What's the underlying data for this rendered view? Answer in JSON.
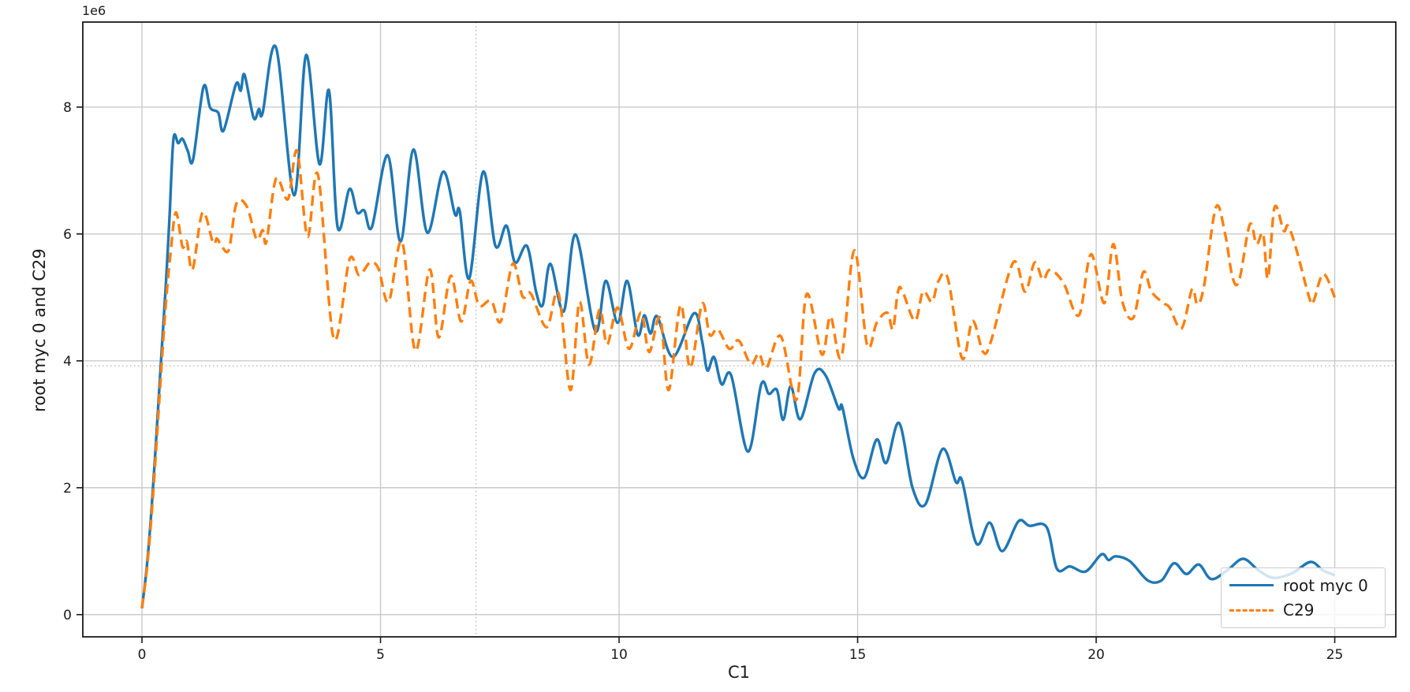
{
  "chart_data": {
    "type": "line",
    "title": "",
    "xlabel": "C1",
    "ylabel": "root myc 0 and C29",
    "y_offset_text": "1e6",
    "y_unit_multiplier": 1000000,
    "xlim": [
      -1.24,
      26.28
    ],
    "ylim": [
      -0.35,
      9.34
    ],
    "xticks": {
      "values": [
        0,
        5,
        10,
        15,
        20,
        25
      ],
      "labels": [
        "0",
        "5",
        "10",
        "15",
        "20",
        "25"
      ]
    },
    "yticks": {
      "values": [
        0,
        2,
        4,
        6,
        8
      ],
      "labels": [
        "0",
        "2",
        "4",
        "6",
        "8"
      ]
    },
    "grid": {
      "enabled": true,
      "color": "#c6c6c6",
      "extra_style": "dotted",
      "extra_color": "#b0b0b0"
    },
    "reference_lines": [
      {
        "axis": "x",
        "value": 7,
        "style": "dotted"
      },
      {
        "axis": "y",
        "value": 3.92,
        "style": "dotted"
      }
    ],
    "legend": {
      "position": "lower right",
      "entries": [
        "root myc 0",
        "C29"
      ]
    },
    "series": [
      {
        "name": "root myc 0",
        "color": "#1f77b4",
        "line_style": "solid",
        "x": [
          0,
          0.1,
          0.2,
          0.3,
          0.4,
          0.5,
          0.58,
          0.66,
          0.76,
          0.85,
          0.96,
          1.07,
          1.29,
          1.43,
          1.6,
          1.71,
          1.97,
          2.07,
          2.15,
          2.34,
          2.45,
          2.53,
          2.81,
          3.19,
          3.44,
          3.72,
          3.92,
          4.1,
          4.35,
          4.51,
          4.66,
          4.82,
          5.15,
          5.42,
          5.69,
          5.98,
          6.31,
          6.56,
          6.66,
          6.86,
          7.15,
          7.41,
          7.64,
          7.82,
          8.07,
          8.26,
          8.4,
          8.56,
          8.84,
          9.09,
          9.5,
          9.72,
          9.97,
          10.17,
          10.39,
          10.53,
          10.66,
          10.8,
          11.13,
          11.57,
          11.74,
          11.85,
          11.99,
          12.15,
          12.35,
          12.7,
          12.98,
          13.14,
          13.31,
          13.44,
          13.6,
          13.8,
          14.1,
          14.33,
          14.6,
          14.68,
          14.91,
          15.14,
          15.4,
          15.6,
          15.87,
          16.15,
          16.42,
          16.78,
          17.06,
          17.19,
          17.49,
          17.77,
          18.03,
          18.37,
          18.6,
          18.96,
          19.18,
          19.45,
          19.78,
          20.11,
          20.26,
          20.41,
          20.71,
          21.08,
          21.37,
          21.63,
          21.89,
          22.15,
          22.41,
          22.75,
          23.08,
          23.4,
          23.71,
          24.1,
          24.49,
          24.75,
          25
        ],
        "y": [
          0.1,
          0.75,
          1.65,
          2.8,
          4.0,
          5.2,
          6.3,
          7.5,
          7.43,
          7.5,
          7.31,
          7.17,
          8.32,
          7.99,
          7.91,
          7.63,
          8.36,
          8.26,
          8.51,
          7.83,
          7.97,
          7.91,
          8.94,
          6.61,
          8.82,
          7.1,
          8.26,
          6.11,
          6.71,
          6.34,
          6.37,
          6.11,
          7.24,
          5.88,
          7.33,
          6.02,
          6.98,
          6.31,
          6.36,
          5.3,
          6.98,
          5.81,
          6.13,
          5.55,
          5.81,
          5.09,
          4.88,
          5.53,
          4.78,
          5.99,
          4.47,
          5.26,
          4.6,
          5.26,
          4.41,
          4.72,
          4.43,
          4.7,
          4.06,
          4.75,
          4.31,
          3.85,
          4.06,
          3.63,
          3.77,
          2.57,
          3.63,
          3.48,
          3.54,
          3.07,
          3.6,
          3.08,
          3.81,
          3.77,
          3.25,
          3.27,
          2.46,
          2.16,
          2.76,
          2.39,
          3.02,
          2.0,
          1.74,
          2.61,
          2.09,
          2.11,
          1.12,
          1.45,
          1.0,
          1.47,
          1.4,
          1.38,
          0.72,
          0.76,
          0.68,
          0.95,
          0.86,
          0.92,
          0.84,
          0.54,
          0.54,
          0.81,
          0.64,
          0.79,
          0.56,
          0.7,
          0.88,
          0.7,
          0.58,
          0.65,
          0.83,
          0.7,
          0.62
        ]
      },
      {
        "name": "C29",
        "color": "#ff7f0e",
        "line_style": "dashed",
        "x": [
          0,
          0.1,
          0.2,
          0.3,
          0.4,
          0.5,
          0.6,
          0.71,
          0.85,
          0.94,
          1.06,
          1.27,
          1.49,
          1.57,
          1.65,
          1.82,
          1.98,
          2.2,
          2.4,
          2.53,
          2.61,
          2.81,
          3.06,
          3.25,
          3.47,
          3.69,
          4.02,
          4.35,
          4.55,
          4.78,
          4.96,
          5.17,
          5.45,
          5.73,
          6.03,
          6.22,
          6.47,
          6.69,
          6.89,
          7.07,
          7.32,
          7.52,
          7.77,
          7.98,
          8.15,
          8.48,
          8.73,
          8.98,
          9.17,
          9.37,
          9.59,
          9.75,
          9.97,
          10.21,
          10.46,
          10.63,
          10.86,
          11.04,
          11.29,
          11.49,
          11.74,
          11.9,
          12.07,
          12.31,
          12.51,
          12.76,
          12.93,
          13.09,
          13.39,
          13.72,
          13.93,
          14.25,
          14.43,
          14.66,
          14.93,
          15.2,
          15.4,
          15.62,
          15.74,
          15.84,
          15.93,
          16.2,
          16.37,
          16.56,
          16.69,
          16.89,
          17.19,
          17.41,
          17.63,
          17.8,
          18.26,
          18.51,
          18.71,
          18.88,
          19.01,
          19.17,
          19.34,
          19.64,
          19.89,
          20.17,
          20.36,
          20.55,
          20.78,
          20.99,
          21.16,
          21.41,
          21.54,
          21.79,
          22.01,
          22.12,
          22.26,
          22.51,
          22.7,
          22.86,
          23.0,
          23.22,
          23.36,
          23.5,
          23.6,
          23.74,
          23.93,
          24.02,
          24.18,
          24.46,
          24.55,
          24.76,
          25
        ],
        "y": [
          0.1,
          0.7,
          1.55,
          2.65,
          3.8,
          4.9,
          5.7,
          6.34,
          5.8,
          5.88,
          5.44,
          6.34,
          5.86,
          5.93,
          5.84,
          5.75,
          6.48,
          6.43,
          5.92,
          6.06,
          5.88,
          6.87,
          6.55,
          7.31,
          5.96,
          6.93,
          4.35,
          5.6,
          5.35,
          5.55,
          5.45,
          4.93,
          5.88,
          4.16,
          5.44,
          4.37,
          5.34,
          4.62,
          5.26,
          4.87,
          4.95,
          4.62,
          5.53,
          5.01,
          5.06,
          4.53,
          5.07,
          3.54,
          4.93,
          3.94,
          4.81,
          4.26,
          4.84,
          4.19,
          4.76,
          4.14,
          4.68,
          3.54,
          4.88,
          3.89,
          4.9,
          4.41,
          4.5,
          4.19,
          4.32,
          3.95,
          4.12,
          3.89,
          4.39,
          3.39,
          5.05,
          4.1,
          4.7,
          4.06,
          5.74,
          4.25,
          4.6,
          4.76,
          4.5,
          5.07,
          5.12,
          4.63,
          5.09,
          4.93,
          5.25,
          5.3,
          4.04,
          4.63,
          4.14,
          4.32,
          5.55,
          5.09,
          5.55,
          5.28,
          5.43,
          5.37,
          5.19,
          4.72,
          5.68,
          4.91,
          5.84,
          4.93,
          4.68,
          5.4,
          5.09,
          4.91,
          4.84,
          4.51,
          5.13,
          4.89,
          5.18,
          6.42,
          6.01,
          5.31,
          5.28,
          6.15,
          5.84,
          6.0,
          5.3,
          6.42,
          6.05,
          6.13,
          5.8,
          5.01,
          4.93,
          5.37,
          5.0
        ]
      }
    ]
  }
}
